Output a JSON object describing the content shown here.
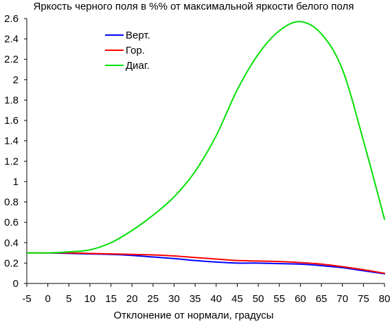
{
  "chart_data": {
    "type": "line",
    "title": "Яркость черного поля в %% от максимальной яркости белого поля",
    "xlabel": "Отклонение от нормали, градусы",
    "ylabel": "",
    "xlim": [
      -5,
      80
    ],
    "ylim": [
      0,
      2.6
    ],
    "x_ticks": [
      "-5",
      "0",
      "5",
      "10",
      "15",
      "20",
      "25",
      "30",
      "35",
      "40",
      "45",
      "50",
      "55",
      "60",
      "65",
      "70",
      "75",
      "80"
    ],
    "y_ticks": [
      "0",
      "0.2",
      "0.4",
      "0.6",
      "0.8",
      "1",
      "1.2",
      "1.4",
      "1.6",
      "1.8",
      "2",
      "2.2",
      "2.4",
      "2.6"
    ],
    "grid": false,
    "legend": "top-left",
    "x": [
      -5,
      0,
      5,
      10,
      15,
      20,
      25,
      30,
      35,
      40,
      45,
      50,
      55,
      60,
      65,
      70,
      75,
      80
    ],
    "series": [
      {
        "name": "Верт.",
        "color": "#0000ff",
        "values": [
          0.3,
          0.3,
          0.295,
          0.29,
          0.285,
          0.275,
          0.26,
          0.245,
          0.225,
          0.21,
          0.2,
          0.2,
          0.195,
          0.19,
          0.175,
          0.155,
          0.125,
          0.095
        ]
      },
      {
        "name": "Гор.",
        "color": "#ff0000",
        "values": [
          0.3,
          0.3,
          0.3,
          0.295,
          0.29,
          0.285,
          0.28,
          0.27,
          0.255,
          0.24,
          0.225,
          0.22,
          0.215,
          0.205,
          0.19,
          0.165,
          0.135,
          0.1
        ]
      },
      {
        "name": "Диаг.",
        "color": "#00e000",
        "values": [
          0.3,
          0.3,
          0.31,
          0.33,
          0.4,
          0.52,
          0.67,
          0.85,
          1.1,
          1.45,
          1.9,
          2.25,
          2.48,
          2.57,
          2.45,
          2.1,
          1.4,
          0.63
        ]
      }
    ]
  }
}
